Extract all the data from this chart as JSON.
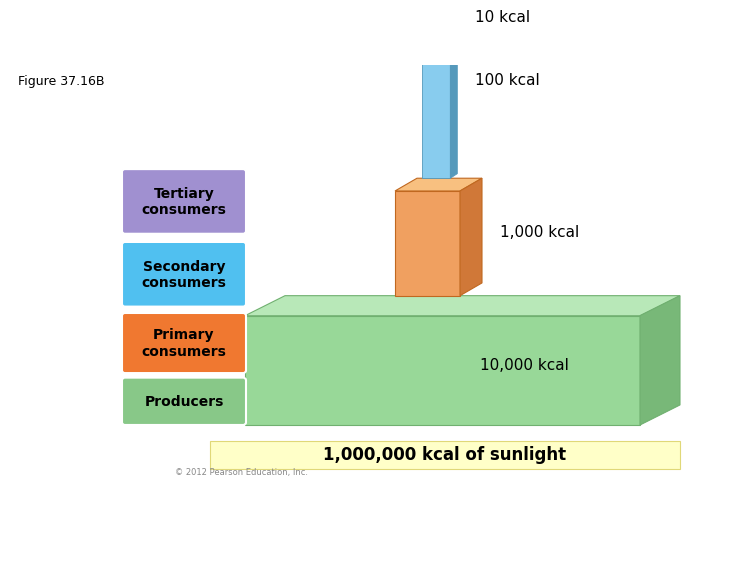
{
  "title": "Figure 37.16B",
  "background_color": "#ffffff",
  "labels": {
    "tertiary": "Tertiary\nconsumers",
    "secondary": "Secondary\nconsumers",
    "primary": "Primary\nconsumers",
    "producers": "Producers"
  },
  "label_colors": {
    "tertiary": "#a090d0",
    "secondary": "#50c0f0",
    "primary": "#f07830",
    "producers": "#88c888"
  },
  "kcal_labels": {
    "tertiary": "10 kcal",
    "secondary": "100 kcal",
    "primary": "1,000 kcal",
    "producers": "10,000 kcal"
  },
  "sunlight_label": "1,000,000 kcal of sunlight",
  "sunlight_bg": "#ffffc8",
  "platform_front_color": "#98d898",
  "platform_top_color": "#b8e8b8",
  "platform_right_color": "#78b878",
  "bar_front_color": "#f0a060",
  "bar_top_color": "#f8c080",
  "bar_right_color": "#d07838",
  "col_front_color": "#88ccee",
  "col_right_color": "#5599bb",
  "col_top_color": "#aaddee",
  "copyright": "© 2012 Pearson Education, Inc."
}
